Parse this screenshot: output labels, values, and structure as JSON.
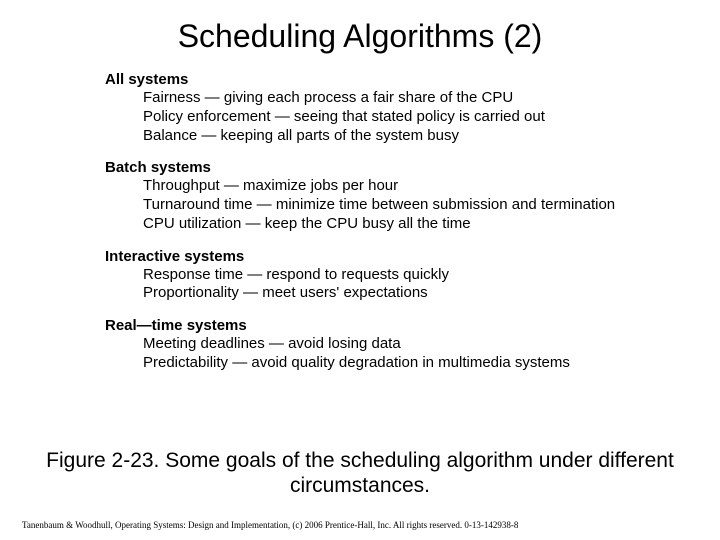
{
  "title": "Scheduling Algorithms (2)",
  "sections": [
    {
      "header": "All systems",
      "items": [
        "Fairness — giving each process a fair share of the CPU",
        "Policy enforcement — seeing that stated policy is carried out",
        "Balance — keeping all parts of the system busy"
      ]
    },
    {
      "header": "Batch systems",
      "items": [
        "Throughput — maximize jobs per hour",
        "Turnaround time — minimize time between submission and termination",
        "CPU utilization — keep the CPU busy all the time"
      ]
    },
    {
      "header": "Interactive systems",
      "items": [
        "Response time — respond to requests quickly",
        "Proportionality — meet users' expectations"
      ]
    },
    {
      "header": "Real—time systems",
      "items": [
        "Meeting deadlines — avoid losing data",
        "Predictability — avoid quality degradation in multimedia systems"
      ]
    }
  ],
  "caption": "Figure 2-23. Some goals of the scheduling algorithm under different circumstances.",
  "footer": "Tanenbaum & Woodhull, Operating Systems: Design and Implementation, (c) 2006 Prentice-Hall, Inc. All rights reserved. 0-13-142938-8",
  "colors": {
    "background": "#ffffff",
    "text": "#000000"
  },
  "typography": {
    "title_fontsize": 32,
    "header_fontsize": 15,
    "item_fontsize": 15,
    "caption_fontsize": 21,
    "footer_fontsize": 9
  }
}
